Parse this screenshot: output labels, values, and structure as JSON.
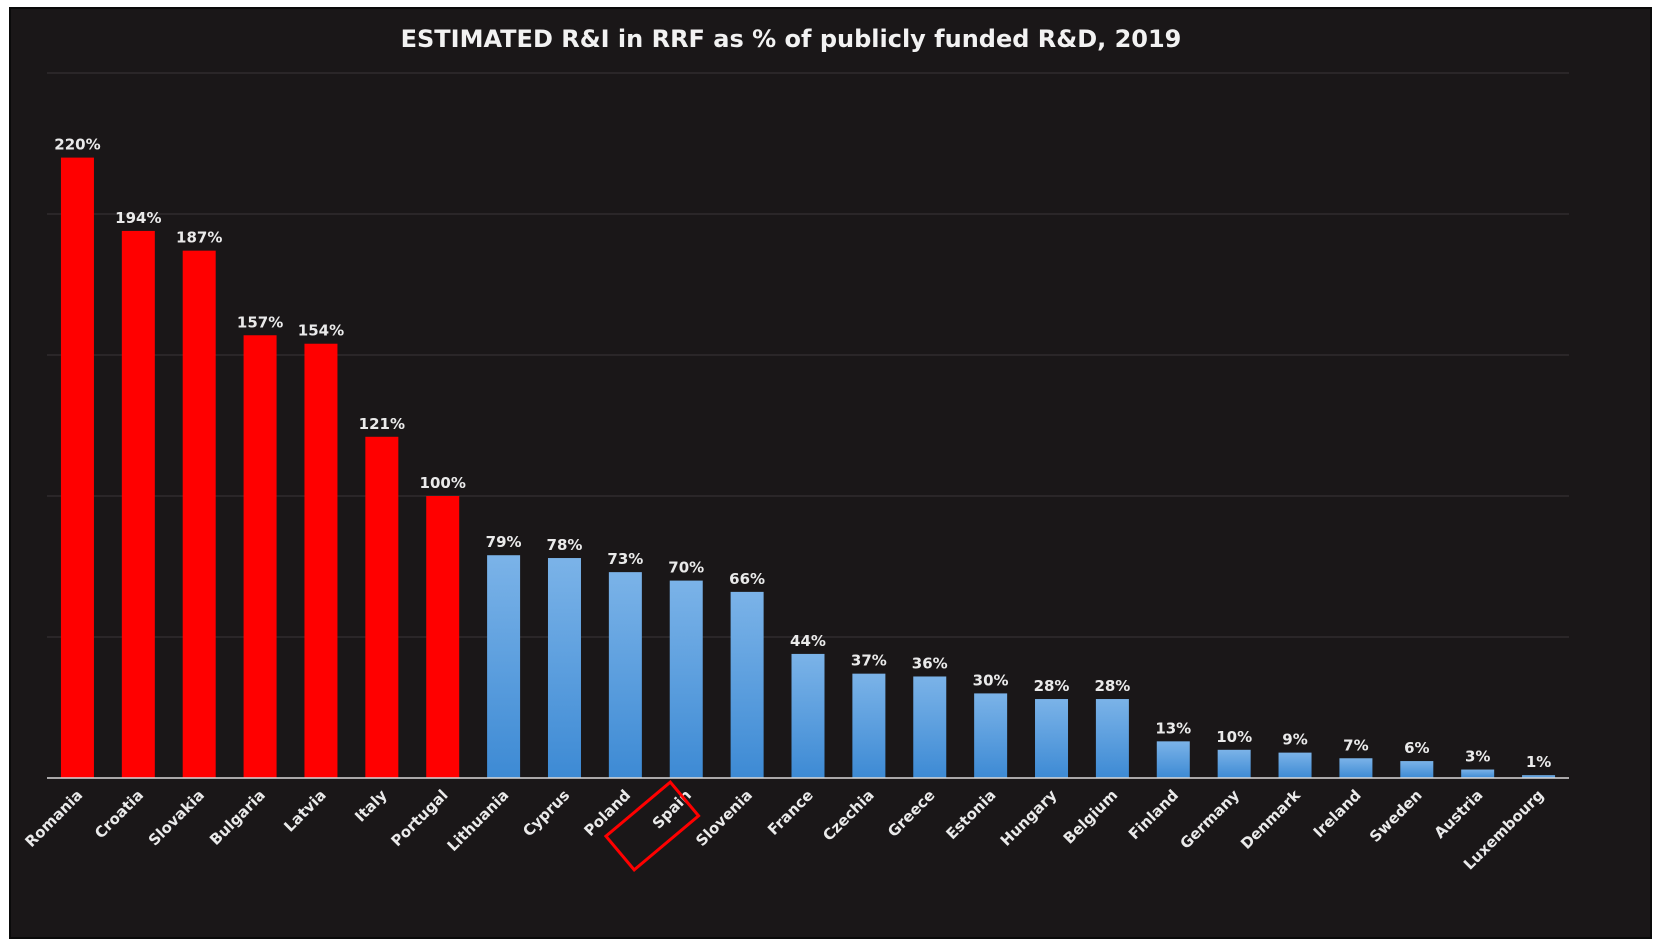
{
  "chart_data": {
    "type": "bar",
    "title": "ESTIMATED R&I in RRF as % of publicly funded R&D, 2019",
    "xlabel": "",
    "ylabel": "",
    "ylim": [
      0,
      250
    ],
    "grid": true,
    "legend": "none",
    "value_suffix": "%",
    "categories": [
      "Romania",
      "Croatia",
      "Slovakia",
      "Bulgaria",
      "Latvia",
      "Italy",
      "Portugal",
      "Lithuania",
      "Cyprus",
      "Poland",
      "Spain",
      "Slovenia",
      "France",
      "Czechia",
      "Greece",
      "Estonia",
      "Hungary",
      "Belgium",
      "Finland",
      "Germany",
      "Denmark",
      "Ireland",
      "Sweden",
      "Austria",
      "Luxembourg"
    ],
    "values": [
      220,
      194,
      187,
      157,
      154,
      121,
      100,
      79,
      78,
      73,
      70,
      66,
      44,
      37,
      36,
      30,
      28,
      28,
      13,
      10,
      9,
      7,
      6,
      3,
      1
    ],
    "colors": {
      "high": "#ff0000",
      "low_top": "#7bb3e8",
      "low_bottom": "#3d8ad4",
      "highlight": "#ff0000"
    },
    "high_threshold": 100,
    "highlighted_category": "Spain"
  }
}
